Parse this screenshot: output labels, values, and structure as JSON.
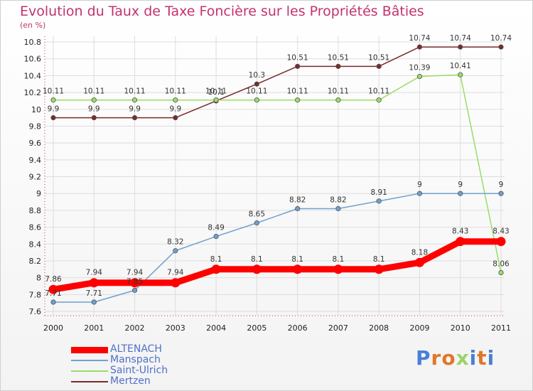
{
  "title": "Evolution du Taux de Taxe Foncière sur les Propriétés Bâties",
  "subtitle": "(en %)",
  "brand": {
    "text": "Proxiti",
    "letters": [
      "P",
      "r",
      "o",
      "x",
      "i",
      "t",
      "i"
    ],
    "colors": [
      "#4a7fd6",
      "#e2762b",
      "#e2762b",
      "#9bd36a",
      "#4a7fd6",
      "#e2762b",
      "#4a7fd6"
    ]
  },
  "chart_data": {
    "type": "line",
    "x": [
      "2000",
      "2001",
      "2002",
      "2003",
      "2004",
      "2005",
      "2006",
      "2007",
      "2008",
      "2009",
      "2010",
      "2011"
    ],
    "ylim": [
      7.6,
      10.8
    ],
    "yticks": [
      "7.6",
      "7.8",
      "8",
      "8.2",
      "8.4",
      "8.6",
      "8.8",
      "9",
      "9.2",
      "9.4",
      "9.6",
      "9.8",
      "10",
      "10.2",
      "10.4",
      "10.6",
      "10.8"
    ],
    "grid": true,
    "legend_position": "bottom-left",
    "series": [
      {
        "name": "ALTENACH",
        "color": "#ff0000",
        "values": [
          7.86,
          7.94,
          7.94,
          7.94,
          8.1,
          8.1,
          8.1,
          8.1,
          8.1,
          8.18,
          8.43,
          8.43
        ],
        "labels": [
          "7.86",
          "7.94",
          "7.94",
          "7.94",
          "8.1",
          "8.1",
          "8.1",
          "8.1",
          "8.1",
          "8.18",
          "8.43",
          "8.43"
        ]
      },
      {
        "name": "Manspach",
        "color": "#6fa0cf",
        "values": [
          7.71,
          7.71,
          7.85,
          8.32,
          8.49,
          8.65,
          8.82,
          8.82,
          8.91,
          9,
          9,
          9
        ],
        "labels": [
          "7.71",
          "7.71",
          "7.85",
          "8.32",
          "8.49",
          "8.65",
          "8.82",
          "8.82",
          "8.91",
          "9",
          "9",
          "9"
        ]
      },
      {
        "name": "Saint-Ulrich",
        "color": "#99dd66",
        "values": [
          10.11,
          10.11,
          10.11,
          10.11,
          10.11,
          10.11,
          10.11,
          10.11,
          10.11,
          10.39,
          10.41,
          8.06
        ],
        "labels": [
          "10.11",
          "10.11",
          "10.11",
          "10.11",
          "10.11",
          "10.11",
          "10.11",
          "10.11",
          "10.11",
          "10.39",
          "10.41",
          "8.06"
        ]
      },
      {
        "name": "Mertzen",
        "color": "#7a2a2a",
        "values": [
          9.9,
          9.9,
          9.9,
          9.9,
          10.1,
          10.3,
          10.51,
          10.51,
          10.51,
          10.74,
          10.74,
          10.74
        ],
        "labels": [
          "9.9",
          "9.9",
          "9.9",
          "9.9",
          "10.1",
          "10.3",
          "10.51",
          "10.51",
          "10.51",
          "10.74",
          "10.74",
          "10.74"
        ]
      }
    ]
  }
}
